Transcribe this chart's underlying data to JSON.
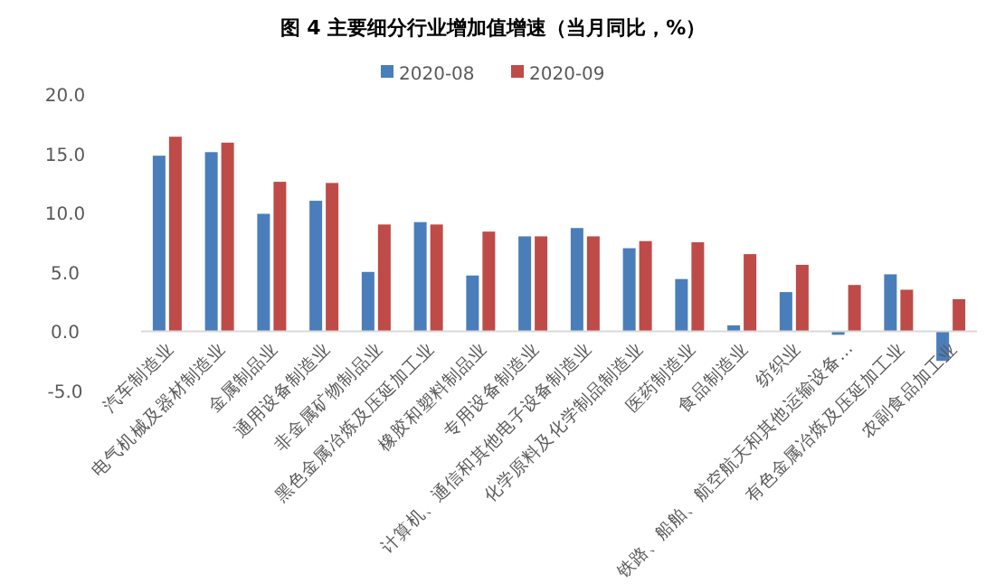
{
  "chart_data": {
    "type": "bar",
    "title": "图 4  主要细分行业增加值增速（当月同比，%）",
    "categories": [
      "汽车制造业",
      "电气机械及器材制造业",
      "金属制品业",
      "通用设备制造业",
      "非金属矿物制品业",
      "黑色金属冶炼及压延加工业",
      "橡胶和塑料制品业",
      "专用设备制造业",
      "计算机、通信和其他电子设备制造业",
      "化学原料及化学制品制造业",
      "医药制造业",
      "食品制造业",
      "纺织业",
      "铁路、船舶、航空航天和其他运输设备…",
      "有色金属冶炼及压延加工业",
      "农副食品加工业"
    ],
    "series": [
      {
        "name": "2020-08",
        "color": "#4a7ebb",
        "values": [
          14.8,
          15.1,
          9.9,
          11.0,
          5.0,
          9.2,
          4.7,
          8.0,
          8.7,
          7.0,
          4.4,
          0.5,
          3.3,
          -0.3,
          4.8,
          -2.5
        ]
      },
      {
        "name": "2020-09",
        "color": "#be4b48",
        "values": [
          16.4,
          15.9,
          12.6,
          12.5,
          9.0,
          9.0,
          8.4,
          8.0,
          8.0,
          7.6,
          7.5,
          6.5,
          5.6,
          3.9,
          3.5,
          2.7
        ]
      }
    ],
    "ylim": [
      -5,
      20
    ],
    "yticks": [
      {
        "value": -5,
        "label": "-5.0"
      },
      {
        "value": 0,
        "label": "0.0"
      },
      {
        "value": 5,
        "label": "5.0"
      },
      {
        "value": 10,
        "label": "10.0"
      },
      {
        "value": 15,
        "label": "15.0"
      },
      {
        "value": 20,
        "label": "20.0"
      }
    ],
    "legend": "top",
    "grid": false
  }
}
